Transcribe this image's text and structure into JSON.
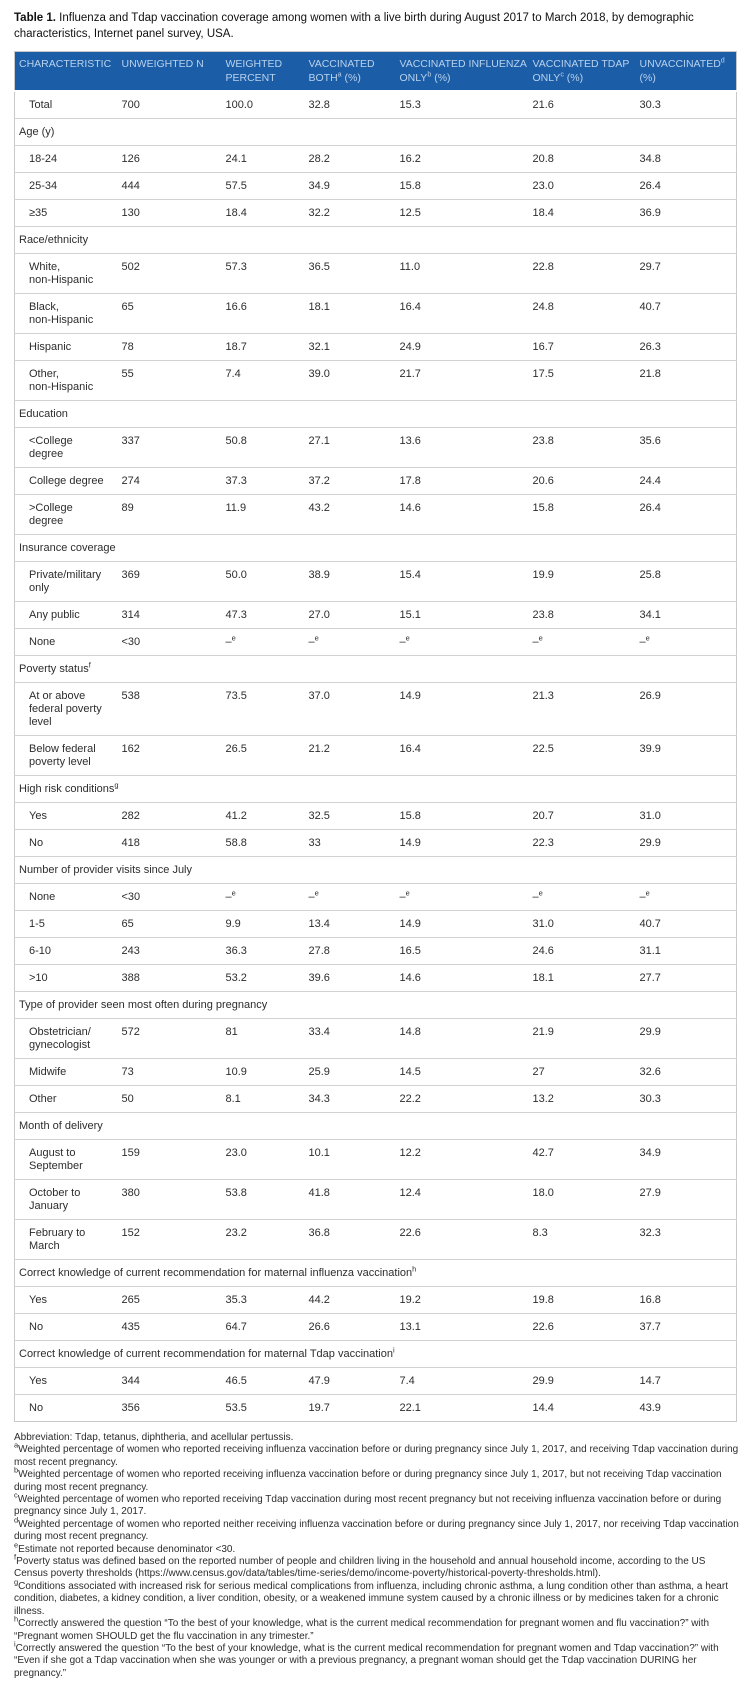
{
  "title": {
    "label": "Table 1.",
    "text": " Influenza and Tdap vaccination coverage among women with a live birth during August 2017 to March 2018, by demographic characteristics, Internet panel survey, USA."
  },
  "table": {
    "columns": [
      "CHARACTERISTIC",
      "UNWEIGHTED N",
      "WEIGHTED PERCENT",
      "VACCINATED BOTH^a^ (%)",
      "VACCINATED INFLUENZA ONLY^b^ (%)",
      "VACCINATED TDAP ONLY^c^ (%)",
      "UNVACCINATED^d^ (%)"
    ],
    "rows": [
      {
        "type": "data",
        "label": "Total",
        "values": [
          "700",
          "100.0",
          "32.8",
          "15.3",
          "21.6",
          "30.3"
        ]
      },
      {
        "type": "section",
        "label": "Age (y)"
      },
      {
        "type": "data",
        "label": "18-24",
        "values": [
          "126",
          "24.1",
          "28.2",
          "16.2",
          "20.8",
          "34.8"
        ]
      },
      {
        "type": "data",
        "label": "25-34",
        "values": [
          "444",
          "57.5",
          "34.9",
          "15.8",
          "23.0",
          "26.4"
        ]
      },
      {
        "type": "data",
        "label": "≥35",
        "values": [
          "130",
          "18.4",
          "32.2",
          "12.5",
          "18.4",
          "36.9"
        ]
      },
      {
        "type": "section",
        "label": "Race/ethnicity"
      },
      {
        "type": "data",
        "label": "White,\nnon-Hispanic",
        "values": [
          "502",
          "57.3",
          "36.5",
          "11.0",
          "22.8",
          "29.7"
        ]
      },
      {
        "type": "data",
        "label": "Black,\nnon-Hispanic",
        "values": [
          "65",
          "16.6",
          "18.1",
          "16.4",
          "24.8",
          "40.7"
        ]
      },
      {
        "type": "data",
        "label": "Hispanic",
        "values": [
          "78",
          "18.7",
          "32.1",
          "24.9",
          "16.7",
          "26.3"
        ]
      },
      {
        "type": "data",
        "label": "Other,\nnon-Hispanic",
        "values": [
          "55",
          "7.4",
          "39.0",
          "21.7",
          "17.5",
          "21.8"
        ]
      },
      {
        "type": "section",
        "label": "Education"
      },
      {
        "type": "data",
        "label": "<College\ndegree",
        "values": [
          "337",
          "50.8",
          "27.1",
          "13.6",
          "23.8",
          "35.6"
        ]
      },
      {
        "type": "data",
        "label": "College degree",
        "values": [
          "274",
          "37.3",
          "37.2",
          "17.8",
          "20.6",
          "24.4"
        ]
      },
      {
        "type": "data",
        "label": ">College\ndegree",
        "values": [
          "89",
          "11.9",
          "43.2",
          "14.6",
          "15.8",
          "26.4"
        ]
      },
      {
        "type": "section",
        "label": "Insurance coverage"
      },
      {
        "type": "data",
        "label": "Private/military\nonly",
        "values": [
          "369",
          "50.0",
          "38.9",
          "15.4",
          "19.9",
          "25.8"
        ]
      },
      {
        "type": "data",
        "label": "Any public",
        "values": [
          "314",
          "47.3",
          "27.0",
          "15.1",
          "23.8",
          "34.1"
        ]
      },
      {
        "type": "data",
        "label": "None",
        "values": [
          "<30",
          "–^e",
          "–^e",
          "–^e",
          "–^e",
          "–^e"
        ]
      },
      {
        "type": "section",
        "label": "Poverty status^f"
      },
      {
        "type": "data",
        "label": "At or above\nfederal poverty\nlevel",
        "values": [
          "538",
          "73.5",
          "37.0",
          "14.9",
          "21.3",
          "26.9"
        ]
      },
      {
        "type": "data",
        "label": "Below federal\npoverty level",
        "values": [
          "162",
          "26.5",
          "21.2",
          "16.4",
          "22.5",
          "39.9"
        ]
      },
      {
        "type": "section",
        "label": "High risk conditions^g"
      },
      {
        "type": "data",
        "label": "Yes",
        "values": [
          "282",
          "41.2",
          "32.5",
          "15.8",
          "20.7",
          "31.0"
        ]
      },
      {
        "type": "data",
        "label": "No",
        "values": [
          "418",
          "58.8",
          "33",
          "14.9",
          "22.3",
          "29.9"
        ]
      },
      {
        "type": "section",
        "label": "Number of provider visits since July"
      },
      {
        "type": "data",
        "label": "None",
        "values": [
          "<30",
          "–^e",
          "–^e",
          "–^e",
          "–^e",
          "–^e"
        ]
      },
      {
        "type": "data",
        "label": "1-5",
        "values": [
          "65",
          "9.9",
          "13.4",
          "14.9",
          "31.0",
          "40.7"
        ]
      },
      {
        "type": "data",
        "label": "6-10",
        "values": [
          "243",
          "36.3",
          "27.8",
          "16.5",
          "24.6",
          "31.1"
        ]
      },
      {
        "type": "data",
        "label": ">10",
        "values": [
          "388",
          "53.2",
          "39.6",
          "14.6",
          "18.1",
          "27.7"
        ]
      },
      {
        "type": "section",
        "label": "Type of provider seen most often during pregnancy"
      },
      {
        "type": "data",
        "label": "Obstetrician/\ngynecologist",
        "values": [
          "572",
          "81",
          "33.4",
          "14.8",
          "21.9",
          "29.9"
        ]
      },
      {
        "type": "data",
        "label": "Midwife",
        "values": [
          "73",
          "10.9",
          "25.9",
          "14.5",
          "27",
          "32.6"
        ]
      },
      {
        "type": "data",
        "label": "Other",
        "values": [
          "50",
          "8.1",
          "34.3",
          "22.2",
          "13.2",
          "30.3"
        ]
      },
      {
        "type": "section",
        "label": "Month of delivery"
      },
      {
        "type": "data",
        "label": "August to\nSeptember",
        "values": [
          "159",
          "23.0",
          "10.1",
          "12.2",
          "42.7",
          "34.9"
        ]
      },
      {
        "type": "data",
        "label": "October to\nJanuary",
        "values": [
          "380",
          "53.8",
          "41.8",
          "12.4",
          "18.0",
          "27.9"
        ]
      },
      {
        "type": "data",
        "label": "February to\nMarch",
        "values": [
          "152",
          "23.2",
          "36.8",
          "22.6",
          "8.3",
          "32.3"
        ]
      },
      {
        "type": "section",
        "label": "Correct knowledge of current recommendation for maternal influenza vaccination^h"
      },
      {
        "type": "data",
        "label": "Yes",
        "values": [
          "265",
          "35.3",
          "44.2",
          "19.2",
          "19.8",
          "16.8"
        ]
      },
      {
        "type": "data",
        "label": "No",
        "values": [
          "435",
          "64.7",
          "26.6",
          "13.1",
          "22.6",
          "37.7"
        ]
      },
      {
        "type": "section",
        "label": "Correct knowledge of current recommendation for maternal Tdap vaccination^i"
      },
      {
        "type": "data",
        "label": "Yes",
        "values": [
          "344",
          "46.5",
          "47.9",
          "7.4",
          "29.9",
          "14.7"
        ]
      },
      {
        "type": "data",
        "label": "No",
        "values": [
          "356",
          "53.5",
          "19.7",
          "22.1",
          "14.4",
          "43.9"
        ]
      }
    ]
  },
  "footnotes": [
    {
      "sup": "",
      "text": "Abbreviation: Tdap, tetanus, diphtheria, and acellular pertussis."
    },
    {
      "sup": "a",
      "text": "Weighted percentage of women who reported receiving influenza vaccination before or during pregnancy since July 1, 2017, and receiving Tdap vaccination during most recent pregnancy."
    },
    {
      "sup": "b",
      "text": "Weighted percentage of women who reported receiving influenza vaccination before or during pregnancy since July 1, 2017, but not receiving Tdap vaccination during most recent pregnancy."
    },
    {
      "sup": "c",
      "text": "Weighted percentage of women who reported receiving Tdap vaccination during most recent pregnancy but not receiving influenza vaccination before or during pregnancy since July 1, 2017."
    },
    {
      "sup": "d",
      "text": "Weighted percentage of women who reported neither receiving influenza vaccination before or during pregnancy since July 1, 2017, nor receiving Tdap vaccination during most recent pregnancy."
    },
    {
      "sup": "e",
      "text": "Estimate not reported because denominator <30."
    },
    {
      "sup": "f",
      "text": "Poverty status was defined based on the reported number of people and children living in the household and annual household income, according to the US Census poverty thresholds (https://www.census.gov/data/tables/time-series/demo/income-poverty/historical-poverty-thresholds.html)."
    },
    {
      "sup": "g",
      "text": "Conditions associated with increased risk for serious medical complications from influenza, including chronic asthma, a lung condition other than asthma, a heart condition, diabetes, a kidney condition, a liver condition, obesity, or a weakened immune system caused by a chronic illness or by medicines taken for a chronic illness."
    },
    {
      "sup": "h",
      "text": "Correctly answered the question “To the best of your knowledge, what is the current medical recommendation for pregnant women and flu vaccination?” with “Pregnant women SHOULD get the flu vaccination in any trimester.”"
    },
    {
      "sup": "i",
      "text": "Correctly answered the question “To the best of your knowledge, what is the current medical recommendation for pregnant women and Tdap vaccination?” with “Even if she got a Tdap vaccination when she was younger or with a previous pregnancy, a pregnant woman should get the Tdap vaccination DURING her pregnancy.”"
    }
  ]
}
